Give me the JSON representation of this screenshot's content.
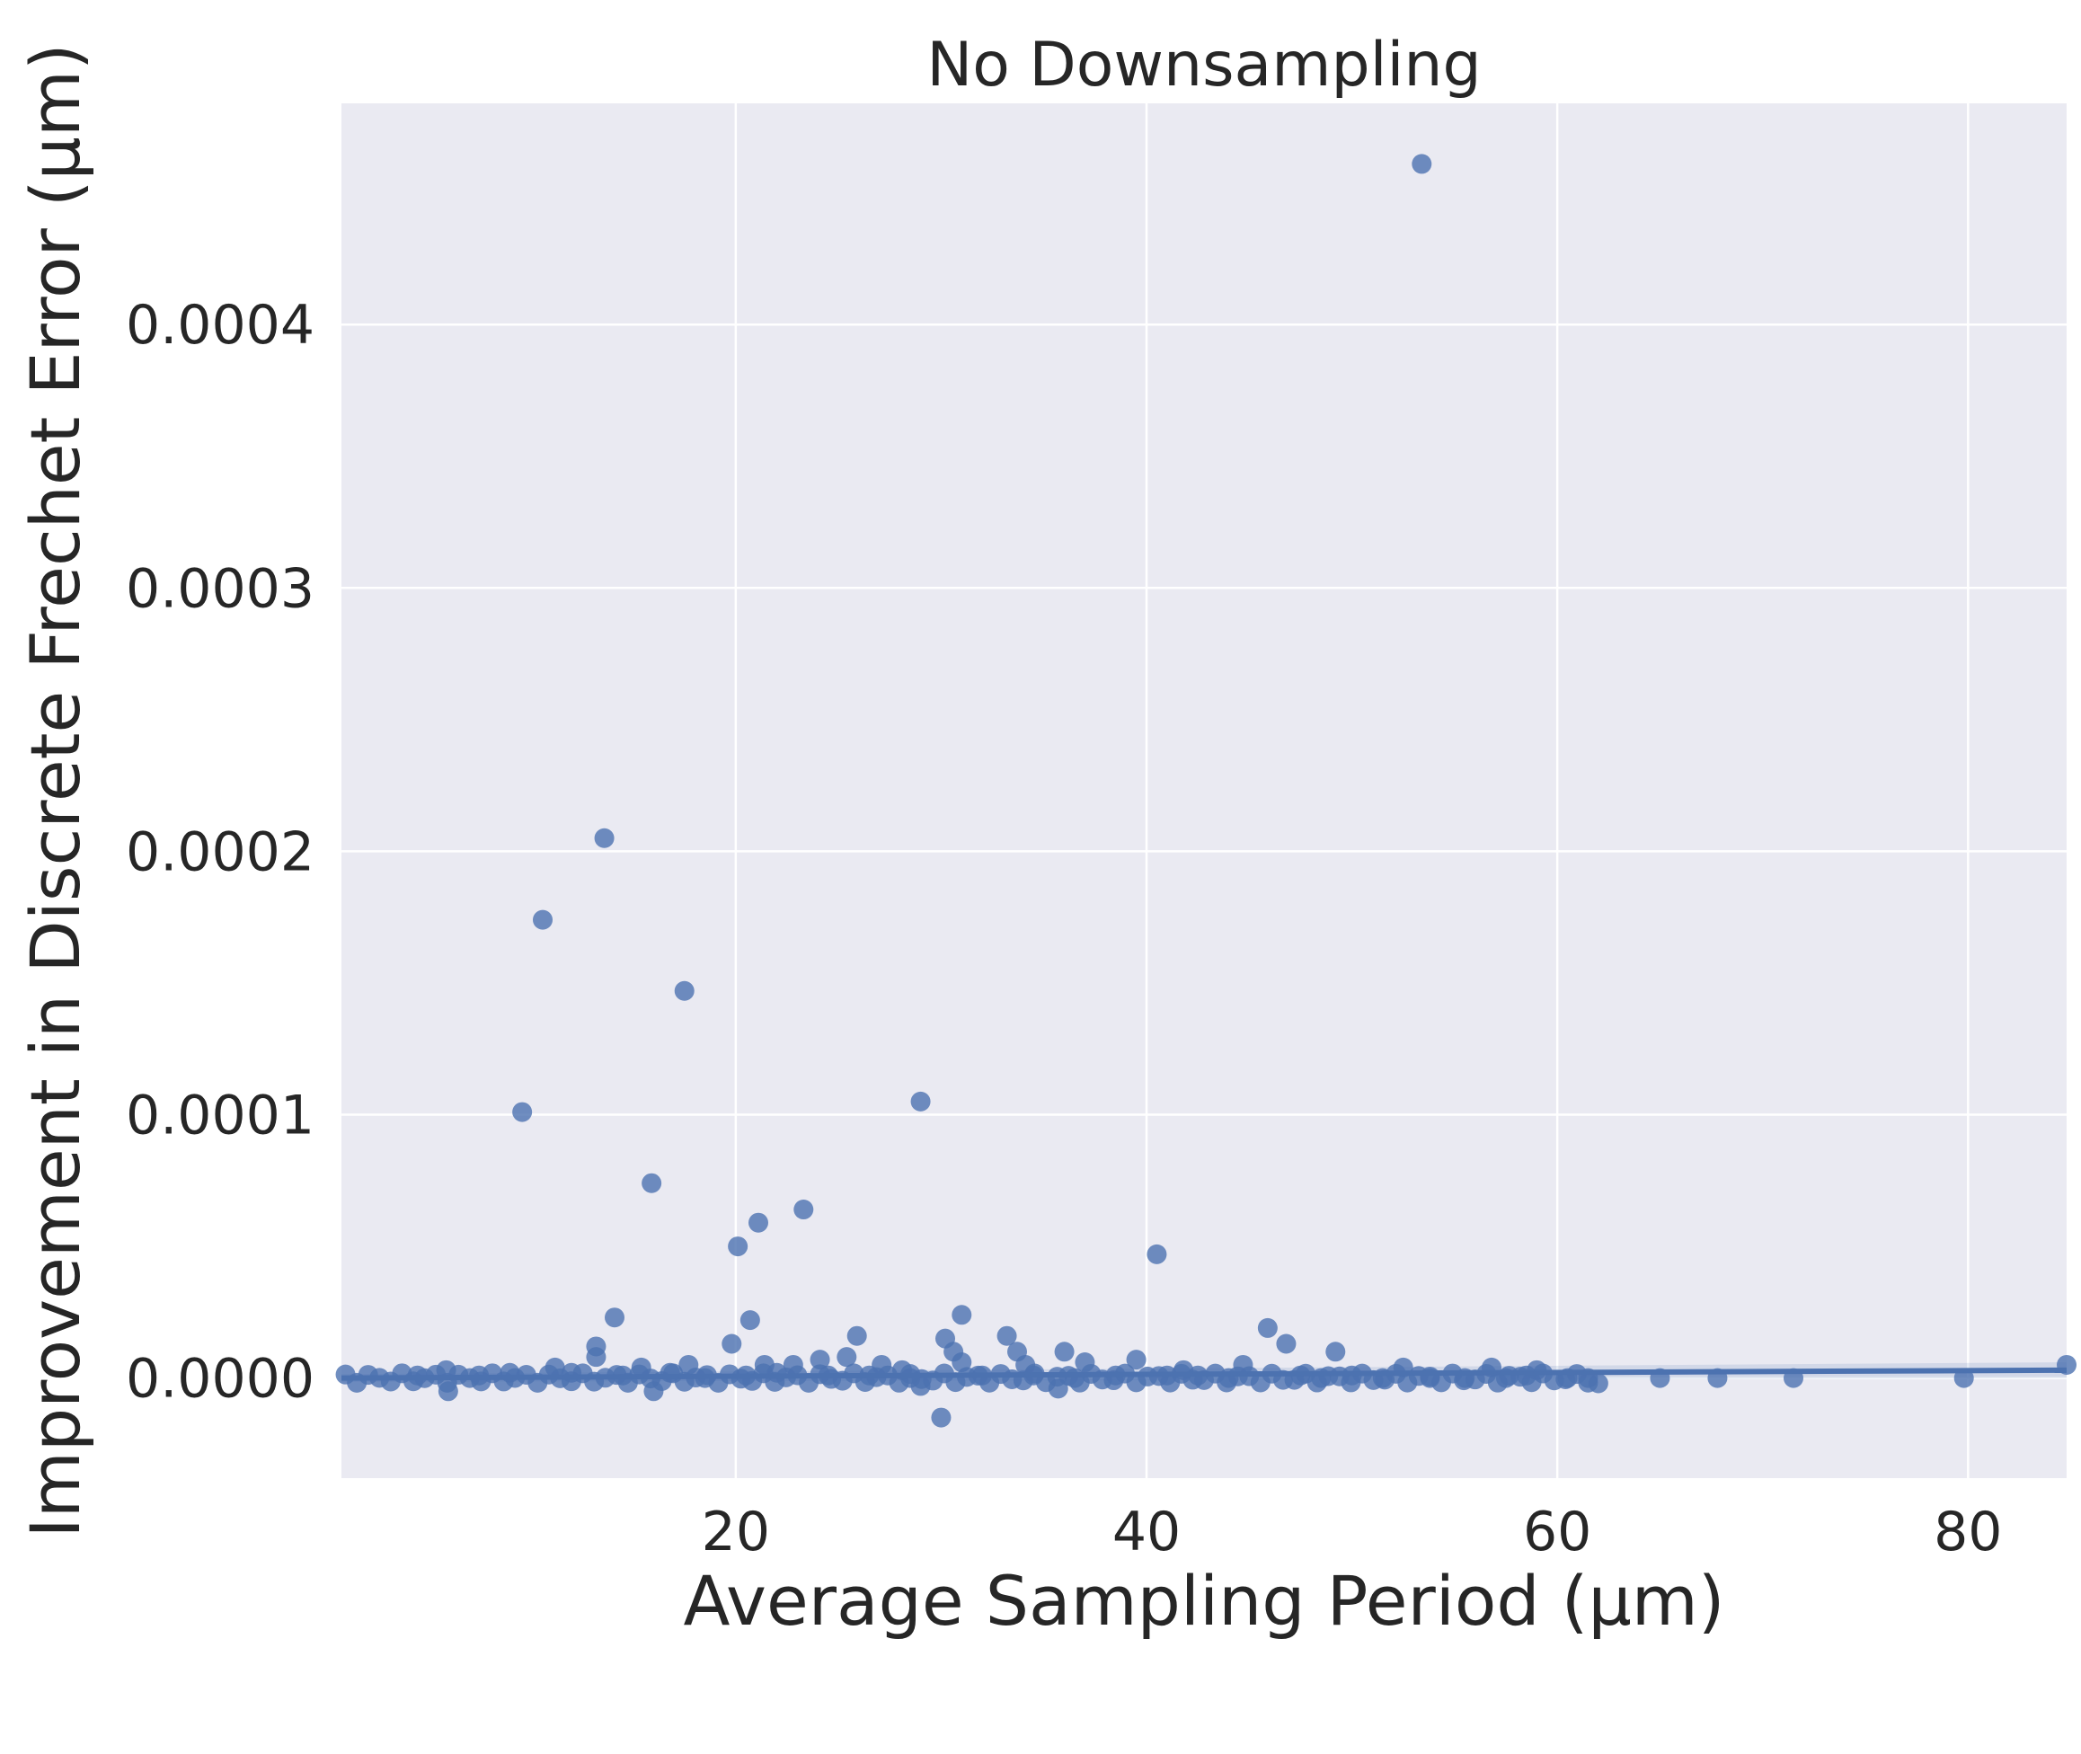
{
  "chart_data": {
    "type": "scatter",
    "title": "No Downsampling",
    "xlabel": "Average Sampling Period (μm)",
    "ylabel": "Improvement in Discrete Frechet Error (μm)",
    "xlim": [
      0.8,
      84.8
    ],
    "ylim": [
      -3.8e-05,
      0.000484
    ],
    "xticks": [
      20,
      40,
      60,
      80
    ],
    "yticks": [
      0.0,
      0.0001,
      0.0002,
      0.0003,
      0.0004
    ],
    "xtick_labels": [
      "20",
      "40",
      "60",
      "80"
    ],
    "ytick_labels": [
      "0.0000",
      "0.0001",
      "0.0002",
      "0.0003",
      "0.0004"
    ],
    "grid": true,
    "background_color": "#eaeaf2",
    "point_color": "#4c72b0",
    "series": [
      {
        "x": [
          53.4,
          13.6,
          10.6,
          17.5,
          9.6,
          29.0,
          15.9,
          23.3,
          21.1,
          20.1,
          40.5,
          14.1,
          31.0,
          20.7,
          25.9,
          45.9,
          33.2,
          19.8,
          30.2,
          46.8,
          13.2,
          49.2,
          30.6,
          33.7,
          36.0,
          39.5,
          25.4,
          17.7,
          37.0,
          34.1,
          44.7,
          27.1,
          31.0,
          22.8,
          24.1,
          21.4,
          13.2,
          11.2,
          15.4,
          28.1,
          56.8,
          59.0,
          41.8,
          5.9,
          52.5,
          35.7,
          29.0,
          16.0,
          6.0,
          30.0,
          62.0,
          65.0,
          67.8,
          71.5,
          79.8,
          85.0,
          4.5,
          7.5,
          9.0,
          12.0,
          14.5,
          16.8,
          18.5,
          20.5,
          22.0,
          24.5,
          26.5,
          28.5,
          32.0,
          34.5,
          36.5,
          38.5,
          41.0,
          42.5,
          44.0,
          47.5,
          48.5,
          50.0,
          51.5,
          53.8,
          55.5,
          57.5,
          58.5,
          60.5,
          61.5
        ],
        "y": [
          0.000461,
          0.000205,
          0.000174,
          0.000147,
          0.000101,
          0.000105,
          7.4e-05,
          6.4e-05,
          5.9e-05,
          5e-05,
          4.7e-05,
          2.3e-05,
          2.4e-05,
          2.2e-05,
          1.6e-05,
          1.9e-05,
          1.6e-05,
          1.3e-05,
          1.5e-05,
          1.3e-05,
          1.2e-05,
          1e-05,
          1e-05,
          1e-05,
          1e-05,
          7e-06,
          8e-06,
          5e-06,
          6e-06,
          5e-06,
          5e-06,
          5e-06,
          6e-06,
          5e-06,
          7e-06,
          5e-06,
          8e-06,
          4e-06,
          4e-06,
          3e-06,
          4e-06,
          3e-06,
          3e-06,
          3e-06,
          4e-06,
          -4e-06,
          -3e-06,
          -5e-06,
          -5e-06,
          -1.5e-05,
          -2e-06,
          0.0,
          0.0,
          0.0,
          0.0,
          5e-06,
          1e-06,
          1e-06,
          2e-06,
          2e-06,
          1e-06,
          2e-06,
          0.0,
          1e-06,
          2e-06,
          1e-06,
          1e-06,
          0.0,
          1e-06,
          1e-06,
          0.0,
          1e-06,
          1e-06,
          1e-06,
          0.0,
          1e-06,
          0.0,
          1e-06,
          0.0,
          0.0,
          0.0,
          0.0,
          1e-06,
          0.0,
          0.0
        ]
      }
    ],
    "trend_line": {
      "x": [
        0.8,
        84.8
      ],
      "y": [
        0.0,
        3e-06
      ]
    }
  }
}
